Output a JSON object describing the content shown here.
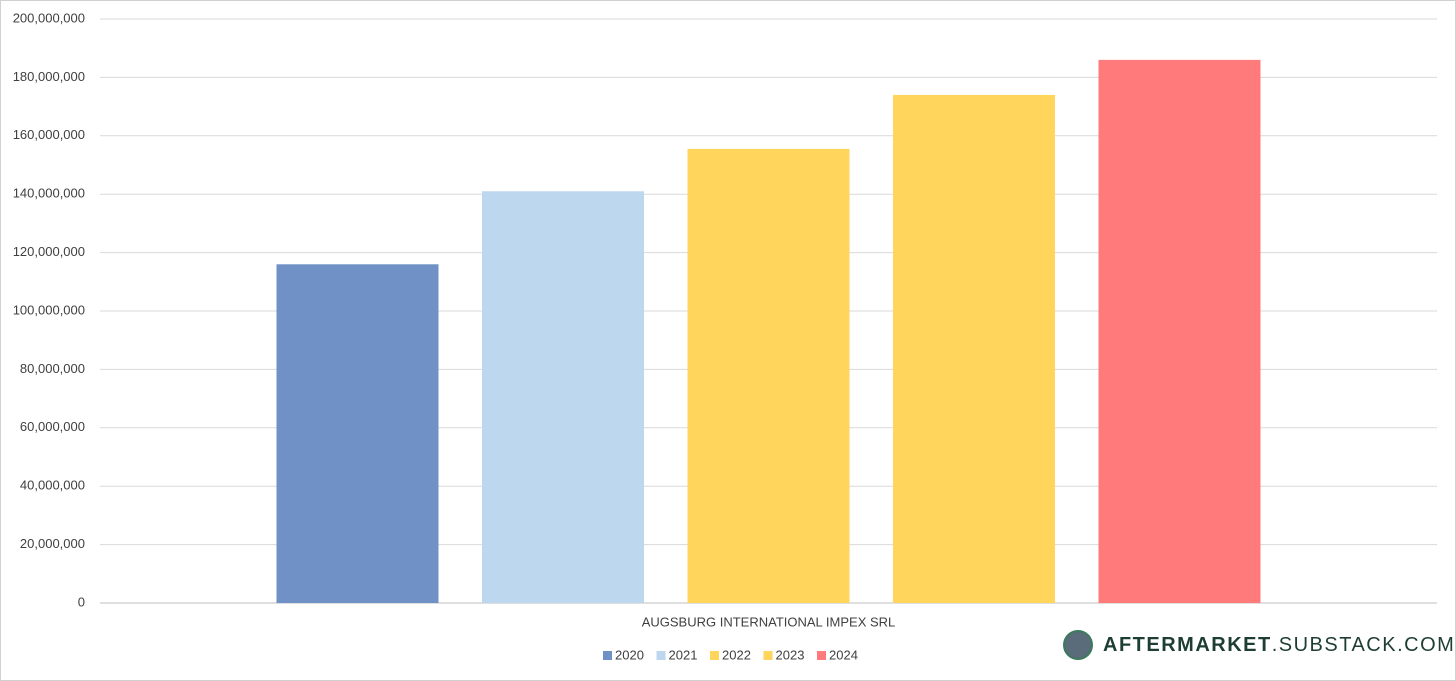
{
  "chart_data": {
    "type": "bar",
    "categories": [
      "AUGSBURG INTERNATIONAL IMPEX SRL"
    ],
    "series": [
      {
        "name": "2020",
        "color": "#7091c6",
        "values": [
          116000000
        ]
      },
      {
        "name": "2021",
        "color": "#bdd7ee",
        "values": [
          141000000
        ]
      },
      {
        "name": "2022",
        "color": "#ffd55c",
        "values": [
          155500000
        ]
      },
      {
        "name": "2023",
        "color": "#ffd55c",
        "values": [
          174000000
        ]
      },
      {
        "name": "2024",
        "color": "#ff7b7b",
        "values": [
          186000000
        ]
      }
    ],
    "ylim": [
      0,
      200000000
    ],
    "yticks": [
      0,
      {
        "value": 20000000,
        "label": "20,000,000"
      },
      {
        "value": 40000000,
        "label": "40,000,000"
      },
      {
        "value": 60000000,
        "label": "60,000,000"
      },
      {
        "value": 80000000,
        "label": "80,000,000"
      },
      {
        "value": 100000000,
        "label": "100,000,000"
      },
      {
        "value": 120000000,
        "label": "120,000,000"
      },
      {
        "value": 140000000,
        "label": "140,000,000"
      },
      {
        "value": 160000000,
        "label": "160,000,000"
      },
      {
        "value": 180000000,
        "label": "180,000,000"
      },
      {
        "value": 200000000,
        "label": "200,000,000"
      }
    ],
    "grid": true,
    "legend": "bottom"
  },
  "watermark": {
    "brand": "AFTERMARKET",
    "domain": ".SUBSTACK.COM"
  }
}
